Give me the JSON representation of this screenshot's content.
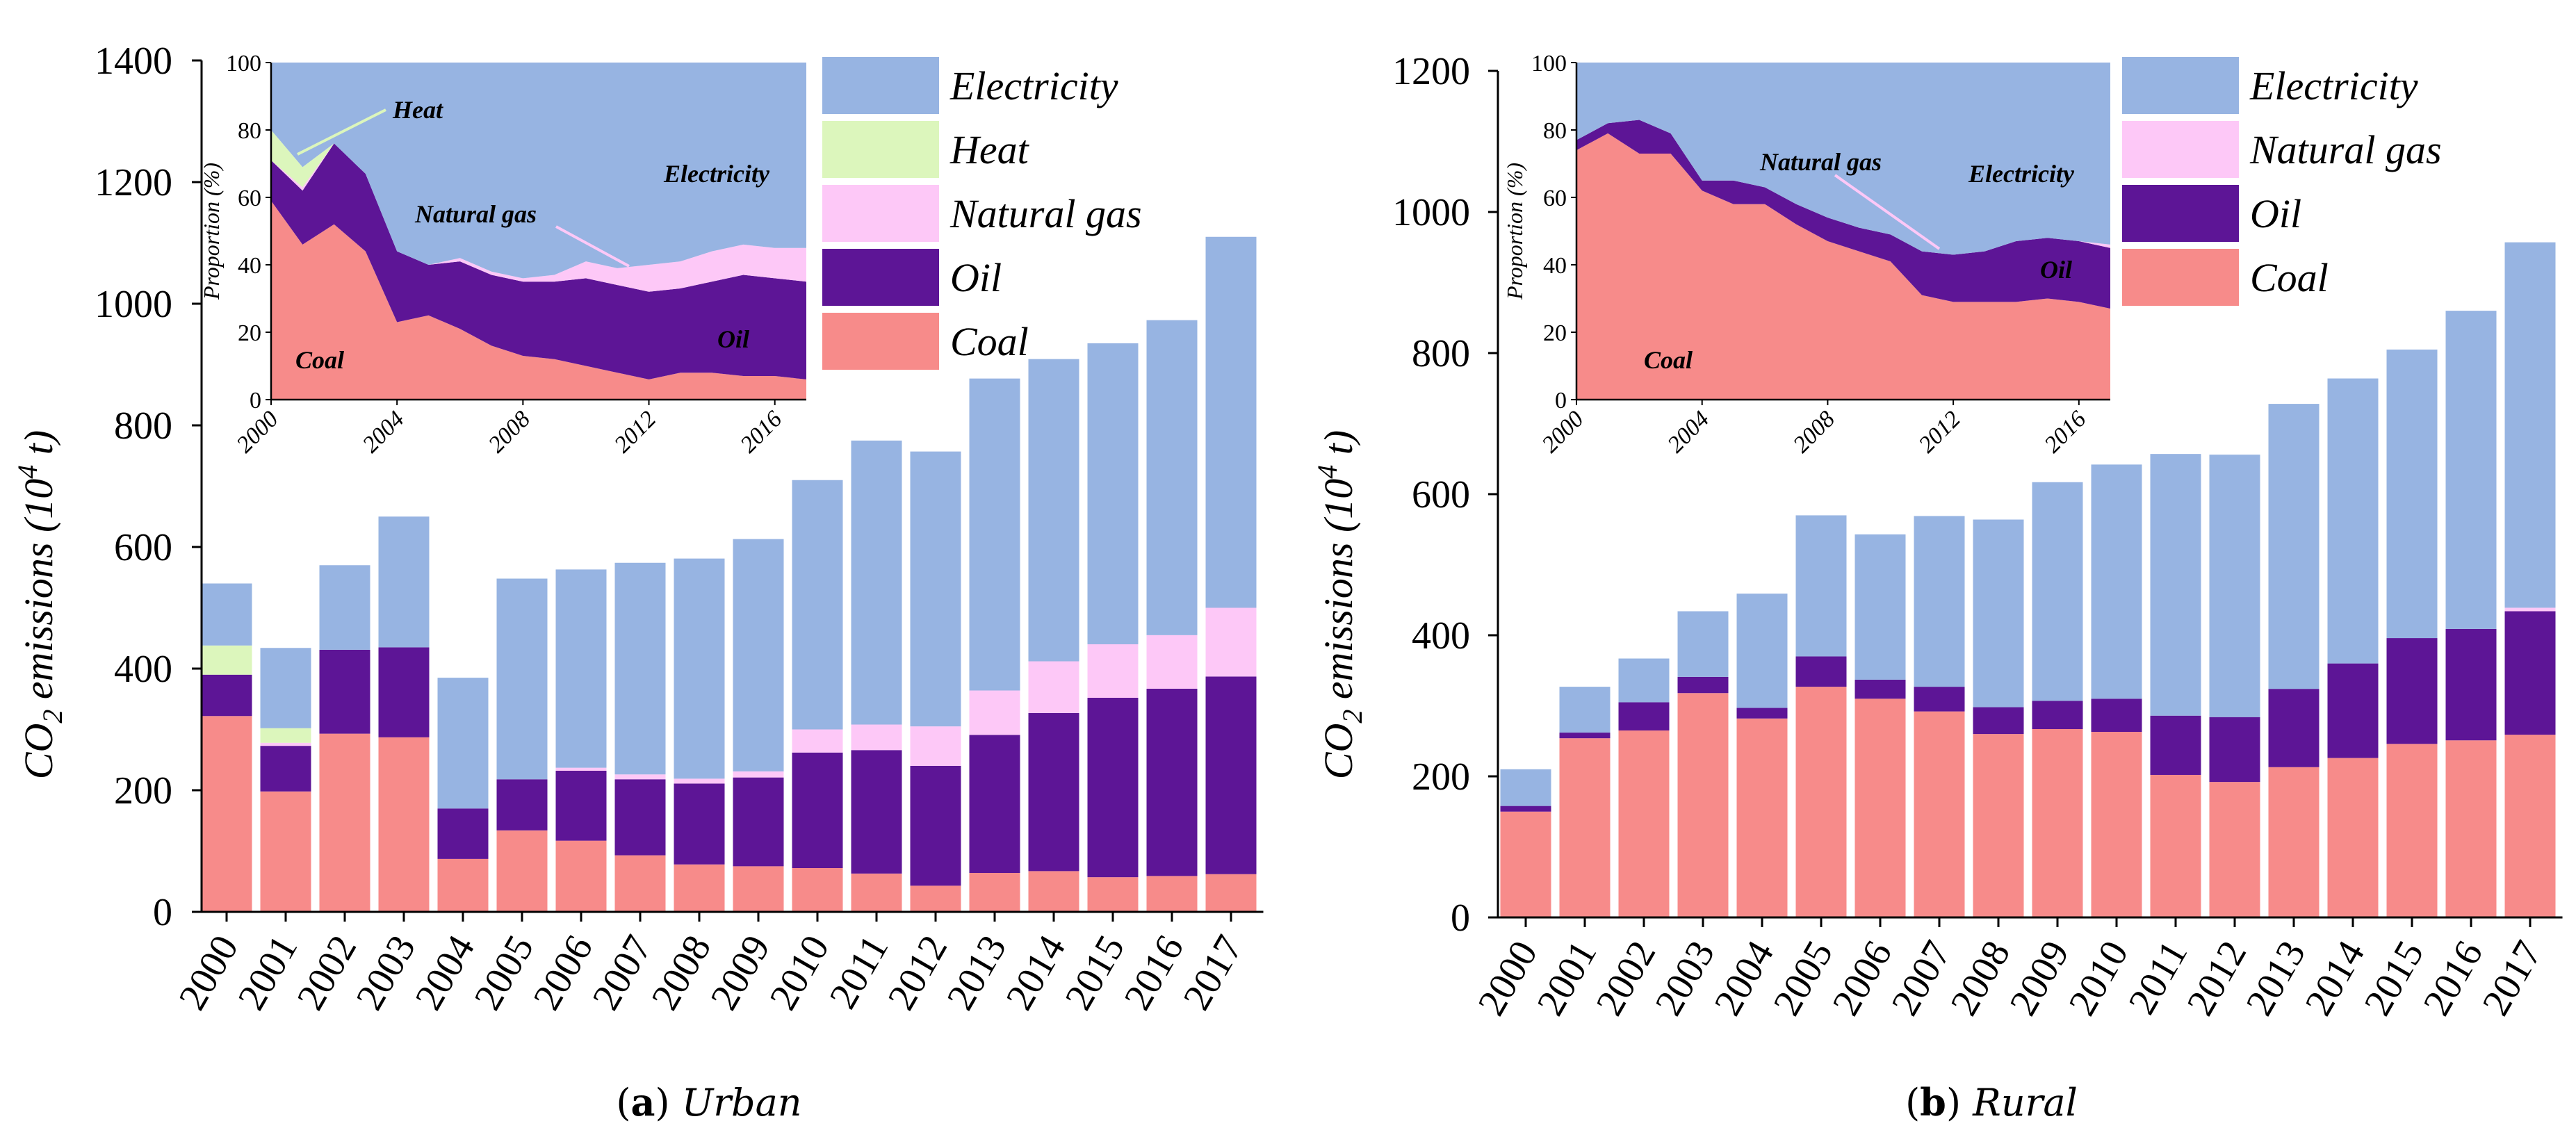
{
  "legend_colors": {
    "Electricity": "#97b4e2",
    "Heat": "#dcf6bc",
    "Natural gas": "#fdc8f7",
    "Oil": "#5d1596",
    "Coal": "#f78b8a"
  },
  "chart_data": [
    {
      "id": "urban",
      "type": "bar",
      "stacked": true,
      "title": "Urban",
      "caption_prefix": "(a)",
      "caption_letter": "a",
      "ylabel": "CO2 emissions (10^4 t)",
      "ylabel_parts": {
        "co": "CO",
        "sub": "2",
        "mid": " emissions (10",
        "sup": "4",
        "end": " t)"
      },
      "ylim": [
        0,
        1400
      ],
      "yticks": [
        0,
        200,
        400,
        600,
        800,
        1000,
        1200,
        1400
      ],
      "categories": [
        "2000",
        "2001",
        "2002",
        "2003",
        "2004",
        "2005",
        "2006",
        "2007",
        "2008",
        "2009",
        "2010",
        "2011",
        "2012",
        "2013",
        "2014",
        "2015",
        "2016",
        "2017"
      ],
      "series": [
        {
          "name": "Coal",
          "values": [
            322,
            198,
            293,
            287,
            87,
            134,
            117,
            93,
            78,
            75,
            72,
            63,
            43,
            64,
            67,
            57,
            59,
            62
          ]
        },
        {
          "name": "Oil",
          "values": [
            68,
            75,
            138,
            148,
            83,
            84,
            115,
            125,
            133,
            146,
            190,
            203,
            197,
            227,
            260,
            295,
            308,
            325
          ]
        },
        {
          "name": "Natural gas",
          "values": [
            0,
            5,
            0,
            0,
            0,
            0,
            5,
            8,
            8,
            10,
            38,
            42,
            65,
            73,
            85,
            88,
            88,
            113
          ]
        },
        {
          "name": "Heat",
          "values": [
            48,
            24,
            0,
            0,
            0,
            0,
            0,
            0,
            0,
            0,
            0,
            0,
            0,
            0,
            0,
            0,
            0,
            0
          ]
        },
        {
          "name": "Electricity",
          "values": [
            102,
            132,
            139,
            215,
            215,
            330,
            326,
            348,
            362,
            382,
            410,
            467,
            452,
            513,
            497,
            495,
            518,
            610
          ]
        }
      ],
      "legend": [
        "Electricity",
        "Heat",
        "Natural gas",
        "Oil",
        "Coal"
      ],
      "inset": {
        "type": "area",
        "stacked": true,
        "ylabel": "Proportion (%)",
        "ylim": [
          0,
          100
        ],
        "yticks": [
          0,
          20,
          40,
          60,
          80,
          100
        ],
        "xticks": [
          "2000",
          "2004",
          "2008",
          "2012",
          "2016"
        ],
        "x": [
          2000,
          2001,
          2002,
          2003,
          2004,
          2005,
          2006,
          2007,
          2008,
          2009,
          2010,
          2011,
          2012,
          2013,
          2014,
          2015,
          2016,
          2017
        ],
        "series": [
          {
            "name": "Coal",
            "values": [
              59,
              46,
              52,
              44,
              23,
              25,
              21,
              16,
              13,
              12,
              10,
              8,
              6,
              8,
              8,
              7,
              7,
              6
            ]
          },
          {
            "name": "Oil",
            "values": [
              12,
              16,
              24,
              23,
              21,
              15,
              20,
              21,
              22,
              23,
              26,
              26,
              26,
              25,
              27,
              30,
              29,
              29
            ]
          },
          {
            "name": "Natural gas",
            "values": [
              0,
              1,
              0,
              0,
              0,
              0,
              1,
              1,
              1,
              2,
              5,
              5,
              8,
              8,
              9,
              9,
              9,
              10
            ]
          },
          {
            "name": "Heat",
            "values": [
              9,
              6,
              0,
              0,
              0,
              0,
              0,
              0,
              0,
              0,
              0,
              0,
              0,
              0,
              0,
              0,
              0,
              0
            ]
          },
          {
            "name": "Electricity",
            "values": [
              20,
              31,
              24,
              33,
              56,
              60,
              58,
              62,
              64,
              63,
              59,
              61,
              60,
              59,
              56,
              54,
              55,
              55
            ]
          }
        ],
        "annotations": [
          "Heat",
          "Natural gas",
          "Electricity",
          "Oil",
          "Coal"
        ]
      }
    },
    {
      "id": "rural",
      "type": "bar",
      "stacked": true,
      "title": "Rural",
      "caption_prefix": "(b)",
      "caption_letter": "b",
      "ylabel": "CO2 emissions (10^4 t)",
      "ylabel_parts": {
        "co": "CO",
        "sub": "2",
        "mid": " emissions (10",
        "sup": "4",
        "end": " t)"
      },
      "ylim": [
        0,
        1200
      ],
      "yticks": [
        0,
        200,
        400,
        600,
        800,
        1000,
        1200
      ],
      "categories": [
        "2000",
        "2001",
        "2002",
        "2003",
        "2004",
        "2005",
        "2006",
        "2007",
        "2008",
        "2009",
        "2010",
        "2011",
        "2012",
        "2013",
        "2014",
        "2015",
        "2016",
        "2017"
      ],
      "series": [
        {
          "name": "Coal",
          "values": [
            150,
            254,
            265,
            318,
            282,
            327,
            310,
            292,
            260,
            267,
            263,
            202,
            192,
            213,
            226,
            246,
            251,
            259
          ]
        },
        {
          "name": "Oil",
          "values": [
            8,
            8,
            40,
            23,
            15,
            43,
            27,
            35,
            38,
            40,
            47,
            84,
            92,
            111,
            134,
            150,
            158,
            175
          ]
        },
        {
          "name": "Natural gas",
          "values": [
            0,
            0,
            0,
            0,
            0,
            0,
            0,
            0,
            0,
            0,
            0,
            0,
            0,
            0,
            0,
            0,
            0,
            5
          ]
        },
        {
          "name": "Electricity",
          "values": [
            52,
            65,
            62,
            93,
            162,
            200,
            206,
            242,
            266,
            310,
            332,
            371,
            372,
            404,
            404,
            409,
            451,
            518
          ]
        }
      ],
      "legend": [
        "Electricity",
        "Natural gas",
        "Oil",
        "Coal"
      ],
      "inset": {
        "type": "area",
        "stacked": true,
        "ylabel": "Proportion (%)",
        "ylim": [
          0,
          100
        ],
        "yticks": [
          0,
          20,
          40,
          60,
          80,
          100
        ],
        "xticks": [
          "2000",
          "2004",
          "2008",
          "2012",
          "2016"
        ],
        "x": [
          2000,
          2001,
          2002,
          2003,
          2004,
          2005,
          2006,
          2007,
          2008,
          2009,
          2010,
          2011,
          2012,
          2013,
          2014,
          2015,
          2016,
          2017
        ],
        "series": [
          {
            "name": "Coal",
            "values": [
              74,
              79,
              73,
              73,
              62,
              58,
              58,
              52,
              47,
              44,
              41,
              31,
              29,
              29,
              29,
              30,
              29,
              27
            ]
          },
          {
            "name": "Oil",
            "values": [
              3,
              3,
              10,
              6,
              3,
              7,
              5,
              6,
              7,
              7,
              8,
              13,
              14,
              15,
              18,
              18,
              18,
              18
            ]
          },
          {
            "name": "Natural gas",
            "values": [
              0,
              0,
              0,
              0,
              0,
              0,
              0,
              0,
              0,
              0,
              0,
              0,
              0,
              0,
              0,
              0,
              0,
              1
            ]
          },
          {
            "name": "Electricity",
            "values": [
              23,
              18,
              17,
              21,
              35,
              35,
              37,
              42,
              46,
              49,
              51,
              56,
              57,
              56,
              53,
              52,
              53,
              54
            ]
          }
        ],
        "annotations": [
          "Natural gas",
          "Electricity",
          "Oil",
          "Coal"
        ]
      }
    }
  ]
}
